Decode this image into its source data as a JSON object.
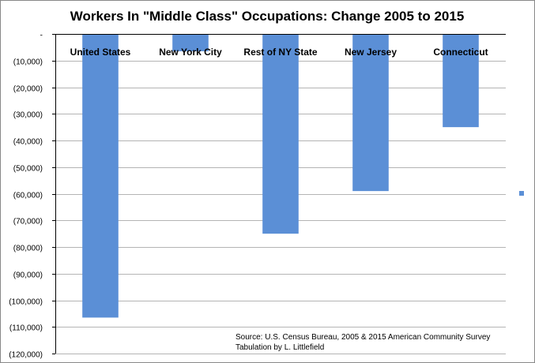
{
  "chart_data": {
    "type": "bar",
    "title": "Workers In \"Middle Class\" Occupations:  Change 2005 to 2015",
    "categories": [
      "United States",
      "New York City",
      "Rest of NY State",
      "New Jersey",
      "Connecticut"
    ],
    "values": [
      -106500,
      -6500,
      -75000,
      -59000,
      -35000
    ],
    "ylim": [
      -120000,
      0
    ],
    "y_ticks": [
      0,
      -10000,
      -20000,
      -30000,
      -40000,
      -50000,
      -60000,
      -70000,
      -80000,
      -90000,
      -100000,
      -110000,
      -120000
    ],
    "y_tick_labels": [
      "-",
      "(10,000)",
      "(20,000)",
      "(30,000)",
      "(40,000)",
      "(50,000)",
      "(60,000)",
      "(70,000)",
      "(80,000)",
      "(90,000)",
      "(100,000)",
      "(110,000)",
      "(120,000)"
    ],
    "grid": true,
    "legend_marker": true,
    "bar_color": "#5b8fd6"
  },
  "source": {
    "line1": "Source:  U.S. Census Bureau, 2005 & 2015 American Community Survey",
    "line2": "Tabulation by L. Littlefield"
  },
  "colors": {
    "grid": "#b4b4b4",
    "axis": "#000000",
    "bar": "#5b8fd6"
  }
}
